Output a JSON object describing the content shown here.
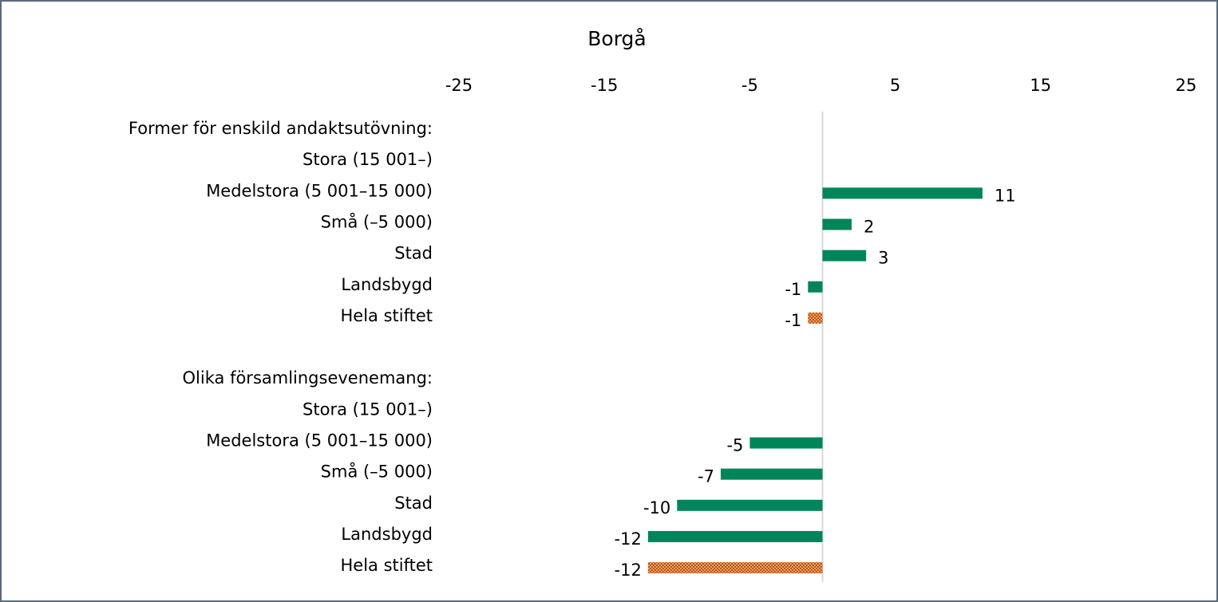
{
  "chart_data": {
    "type": "barh",
    "title": "Borgå",
    "categories": [
      "Former för enskild andaktsutövning:",
      "Stora (15 001–)",
      "Medelstora (5 001–15 000)",
      "Små (–5 000)",
      "Stad",
      "Landsbygd",
      "Hela stiftet",
      null,
      "Olika församlingsevenemang:",
      "Stora (15 001–)",
      "Medelstora (5 001–15 000)",
      "Små (–5 000)",
      "Stad",
      "Landsbygd",
      "Hela stiftet"
    ],
    "values": [
      null,
      null,
      11,
      2,
      3,
      -1,
      -1,
      null,
      null,
      null,
      -5,
      -7,
      -10,
      -12,
      -12
    ],
    "color": "#00855a",
    "highlight_color": "#c55a11",
    "highlight_categories": [
      "Hela stiftet"
    ],
    "xlim": [
      -25,
      25
    ],
    "xticks": [
      -25,
      -15,
      -5,
      5,
      15,
      25
    ],
    "grid": false
  }
}
